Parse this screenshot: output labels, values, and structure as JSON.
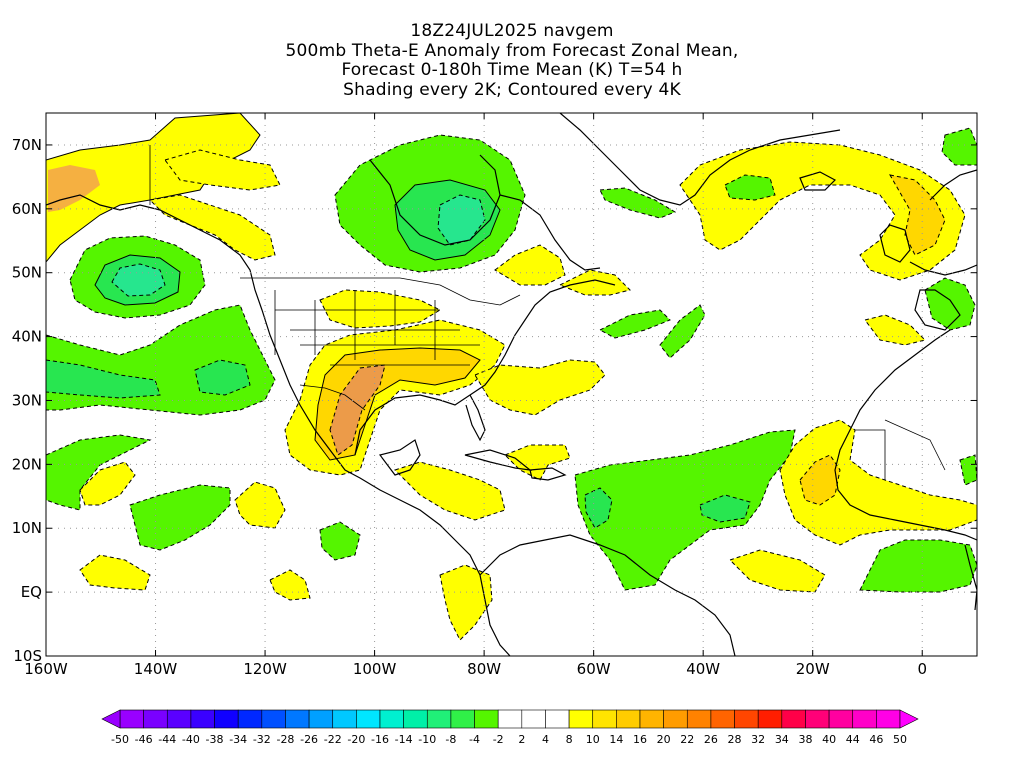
{
  "title": {
    "line1": "18Z24JUL2025 navgem",
    "line2": "500mb Theta-E Anomaly from Forecast Zonal Mean,",
    "line3": "Forecast 0-180h Time Mean (K) T=54 h",
    "line4": "Shading every 2K; Contoured every 4K"
  },
  "map": {
    "projection": "cylindrical equidistant",
    "lon_range": [
      -160,
      10
    ],
    "lat_range": [
      -10,
      75
    ],
    "x_ticks": [
      {
        "lon": -160,
        "label": "160W"
      },
      {
        "lon": -140,
        "label": "140W"
      },
      {
        "lon": -120,
        "label": "120W"
      },
      {
        "lon": -100,
        "label": "100W"
      },
      {
        "lon": -80,
        "label": "80W"
      },
      {
        "lon": -60,
        "label": "60W"
      },
      {
        "lon": -40,
        "label": "40W"
      },
      {
        "lon": -20,
        "label": "20W"
      },
      {
        "lon": 0,
        "label": "0"
      }
    ],
    "y_ticks": [
      {
        "lat": 70,
        "label": "70N"
      },
      {
        "lat": 60,
        "label": "60N"
      },
      {
        "lat": 50,
        "label": "50N"
      },
      {
        "lat": 40,
        "label": "40N"
      },
      {
        "lat": 30,
        "label": "30N"
      },
      {
        "lat": 20,
        "label": "20N"
      },
      {
        "lat": 10,
        "label": "10N"
      },
      {
        "lat": 0,
        "label": "EQ"
      },
      {
        "lat": -10,
        "label": "10S"
      }
    ],
    "gridlines": "dotted",
    "colors": {
      "green_-4": "#55f500",
      "green_-8": "#28e650",
      "teal_-10": "#26e68e",
      "yellow_4": "#ffff00",
      "gold_8": "#ffd700",
      "orange_10": "#f5b041",
      "orange_14": "#ec9b49"
    }
  },
  "colorbar": {
    "labels": [
      "-50",
      "-46",
      "-44",
      "-40",
      "-38",
      "-34",
      "-32",
      "-28",
      "-26",
      "-22",
      "-20",
      "-16",
      "-14",
      "-10",
      "-8",
      "-4",
      "-2",
      "2",
      "4",
      "8",
      "10",
      "14",
      "16",
      "20",
      "22",
      "26",
      "28",
      "32",
      "34",
      "38",
      "40",
      "44",
      "46",
      "50"
    ],
    "colors": [
      "#9900ff",
      "#7a00ff",
      "#5a00ff",
      "#3a00ff",
      "#1000ff",
      "#0028ff",
      "#0050ff",
      "#0078ff",
      "#00a0ff",
      "#00c8ff",
      "#00e6ff",
      "#00f0d0",
      "#00f0a8",
      "#20f078",
      "#30f048",
      "#55f500",
      "#ffffff",
      "#ffffff",
      "#ffffff",
      "#ffff00",
      "#ffe400",
      "#ffcc00",
      "#ffb400",
      "#ff9c00",
      "#ff8200",
      "#ff6400",
      "#ff4600",
      "#ff1e00",
      "#ff0048",
      "#ff0078",
      "#ff00a0",
      "#ff00c8",
      "#ff00e6"
    ]
  }
}
